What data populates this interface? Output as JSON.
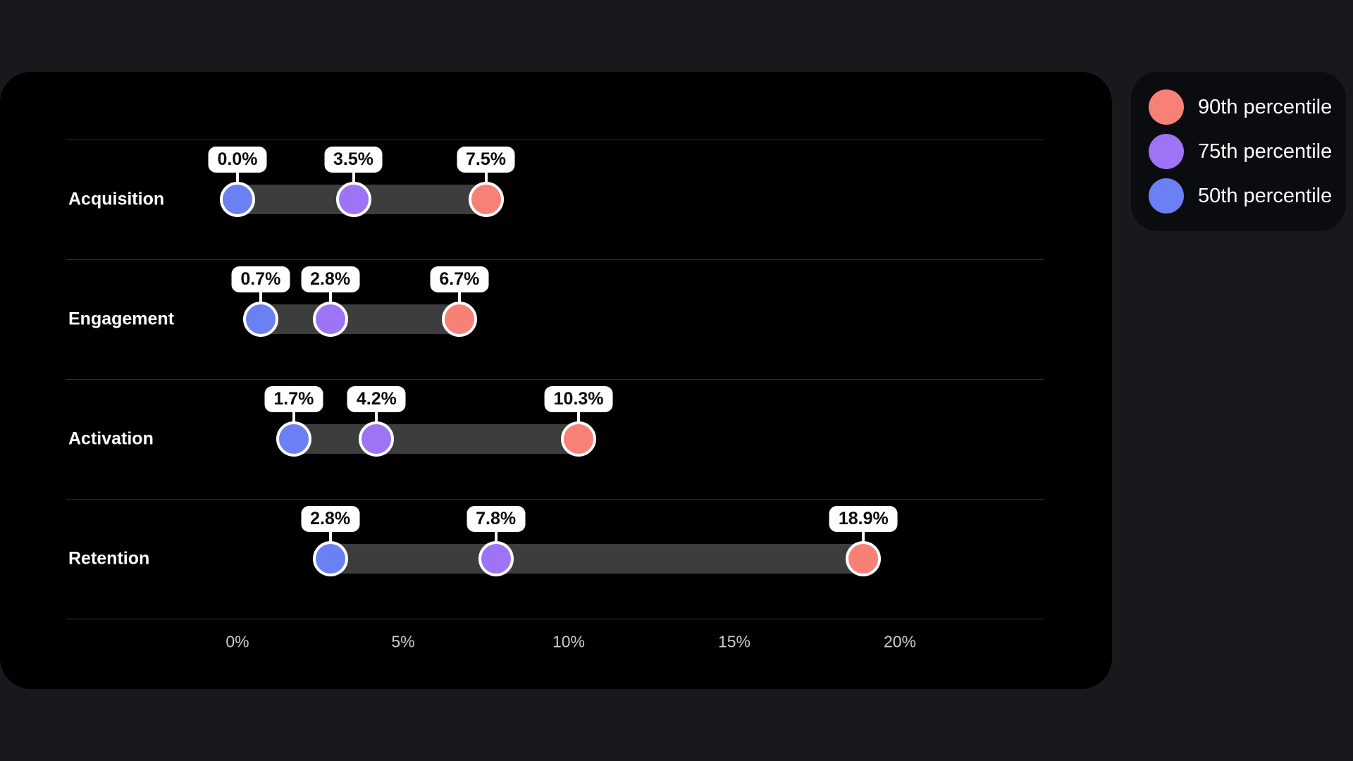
{
  "page": {
    "background": "#17191d",
    "chart_card_bg": "#000000",
    "legend_card_bg": "#0b0c0f"
  },
  "legend": {
    "items": [
      {
        "label": "90th percentile",
        "color": "#f88177"
      },
      {
        "label": "75th percentile",
        "color": "#9d74f6"
      },
      {
        "label": "50th percentile",
        "color": "#6b80f2"
      }
    ]
  },
  "chart_data": {
    "type": "dumbbell-range",
    "title": "",
    "orientation": "horizontal",
    "categories": [
      "Acquisition",
      "Engagement",
      "Activation",
      "Retention"
    ],
    "series": [
      {
        "name": "50th percentile",
        "color": "#6b80f2",
        "values": [
          0.0,
          0.7,
          1.7,
          2.8
        ]
      },
      {
        "name": "75th percentile",
        "color": "#9d74f6",
        "values": [
          3.5,
          2.8,
          4.2,
          7.8
        ]
      },
      {
        "name": "90th percentile",
        "color": "#f88177",
        "values": [
          7.5,
          6.7,
          10.3,
          18.9
        ]
      }
    ],
    "value_labels": [
      [
        "0.0%",
        "3.5%",
        "7.5%"
      ],
      [
        "0.7%",
        "2.8%",
        "6.7%"
      ],
      [
        "1.7%",
        "4.2%",
        "10.3%"
      ],
      [
        "2.8%",
        "7.8%",
        "18.9%"
      ]
    ],
    "x_axis": {
      "tick_labels": [
        "0%",
        "5%",
        "10%",
        "15%",
        "20%"
      ],
      "tick_values": [
        0,
        5,
        10,
        15,
        20
      ],
      "unit": "%"
    },
    "styles": {
      "range_bar_color": "#3d3d3d",
      "gridline_color": "#2c2e32",
      "tick_text_color": "#c9cbce",
      "value_pill_bg": "#ffffff",
      "value_pill_text": "#0b0b0b",
      "category_text_color": "#ffffff"
    },
    "legend_position": "top-right",
    "grid": "horizontal-row-separators"
  }
}
